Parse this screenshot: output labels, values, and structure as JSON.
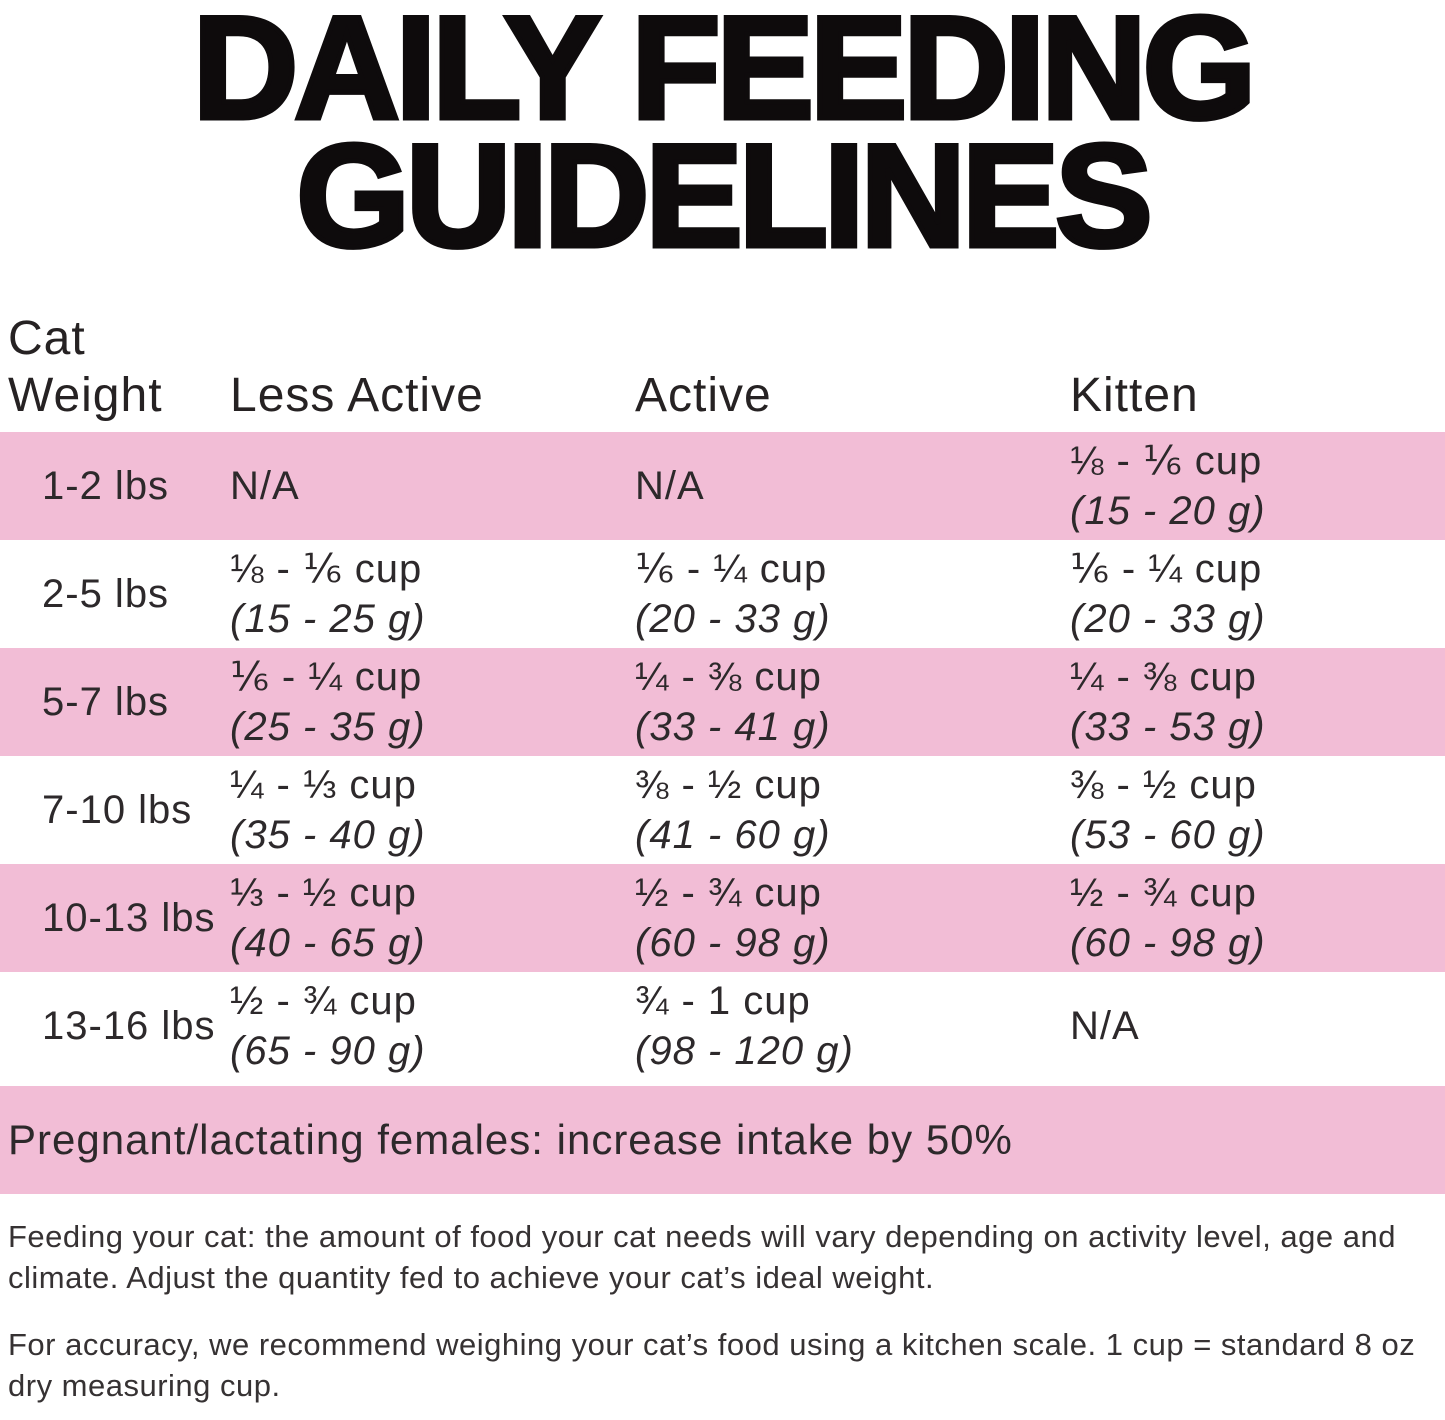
{
  "title": {
    "line1": "DAILY FEEDING",
    "line2": "GUIDELINES"
  },
  "table": {
    "header": {
      "col1_line1": "Cat",
      "col1_line2": "Weight",
      "col2": "Less Active",
      "col3": "Active",
      "col4": "Kitten"
    },
    "rows": [
      {
        "weight": "1-2 lbs",
        "less_active": {
          "cup": "N/A"
        },
        "active": {
          "cup": "N/A"
        },
        "kitten": {
          "cup": "⅛ - ⅙ cup",
          "grams": "(15 - 20 g)"
        }
      },
      {
        "weight": "2-5 lbs",
        "less_active": {
          "cup": "⅛ - ⅙ cup",
          "grams": "(15 - 25 g)"
        },
        "active": {
          "cup": "⅙ - ¼ cup",
          "grams": "(20 - 33 g)"
        },
        "kitten": {
          "cup": "⅙ - ¼ cup",
          "grams": "(20 - 33 g)"
        }
      },
      {
        "weight": "5-7 lbs",
        "less_active": {
          "cup": "⅙ - ¼ cup",
          "grams": "(25 - 35 g)"
        },
        "active": {
          "cup": "¼ - ⅜ cup",
          "grams": "(33 - 41 g)"
        },
        "kitten": {
          "cup": "¼ - ⅜ cup",
          "grams": "(33 - 53 g)"
        }
      },
      {
        "weight": "7-10 lbs",
        "less_active": {
          "cup": "¼ - ⅓ cup",
          "grams": "(35 - 40 g)"
        },
        "active": {
          "cup": "⅜ - ½ cup",
          "grams": "(41 - 60 g)"
        },
        "kitten": {
          "cup": "⅜ - ½ cup",
          "grams": "(53 - 60 g)"
        }
      },
      {
        "weight": "10-13 lbs",
        "less_active": {
          "cup": "⅓ - ½ cup",
          "grams": "(40 - 65 g)"
        },
        "active": {
          "cup": "½ - ¾ cup",
          "grams": "(60 - 98 g)"
        },
        "kitten": {
          "cup": "½ - ¾ cup",
          "grams": "(60 - 98 g)"
        }
      },
      {
        "weight": "13-16 lbs",
        "less_active": {
          "cup": "½ - ¾ cup",
          "grams": "(65 - 90 g)"
        },
        "active": {
          "cup": "¾ - 1 cup",
          "grams": "(98 - 120 g)"
        },
        "kitten": {
          "cup": "N/A"
        }
      }
    ],
    "pregnant_note": "Pregnant/lactating females: increase intake by 50%"
  },
  "footnotes": {
    "feeding": "Feeding your cat: the amount of food your cat needs will vary depending on activity level, age and climate. Adjust the quantity fed to achieve your cat’s ideal weight.",
    "accuracy": "For accuracy, we recommend weighing your cat’s food using a kitchen scale. 1 cup = standard 8 oz dry measuring cup."
  },
  "colors": {
    "row_pink": "#F2BDD6",
    "title_black": "#0e0b0c",
    "text": "#2d292b"
  }
}
